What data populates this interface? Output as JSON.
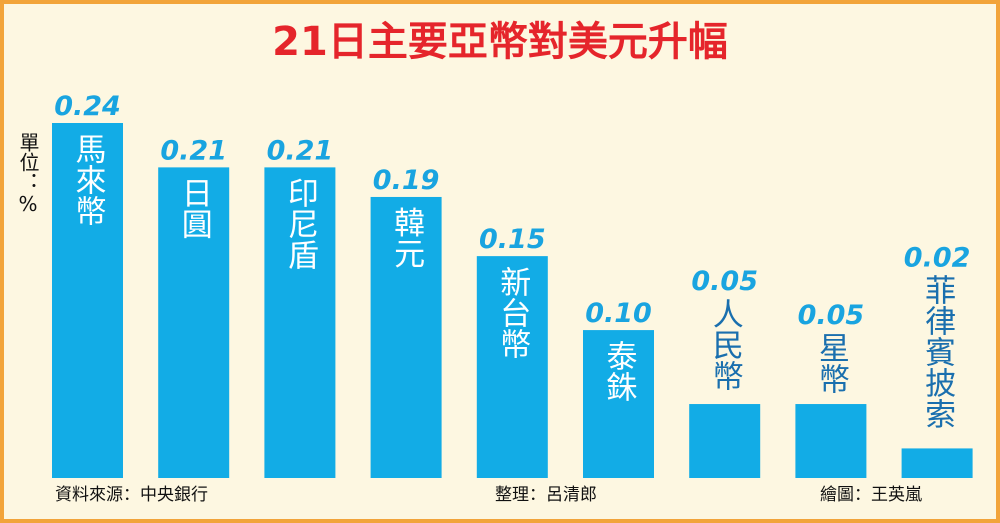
{
  "chart_data": {
    "type": "bar",
    "title": "21日主要亞幣對美元升幅",
    "unit_label": "單位：%",
    "categories": [
      "馬來幣",
      "日圓",
      "印尼盾",
      "韓元",
      "新台幣",
      "泰銖",
      "人民幣",
      "星幣",
      "菲律賓披索"
    ],
    "values": [
      0.24,
      0.21,
      0.21,
      0.19,
      0.15,
      0.1,
      0.05,
      0.05,
      0.02
    ],
    "value_labels": [
      "0.24",
      "0.21",
      "0.21",
      "0.19",
      "0.15",
      "0.10",
      "0.05",
      "0.05",
      "0.02"
    ],
    "color": "#12ace6",
    "source": "資料來源：中央銀行",
    "compiler": "整理：呂清郎",
    "illustrator": "繪圖：王英嵐"
  }
}
